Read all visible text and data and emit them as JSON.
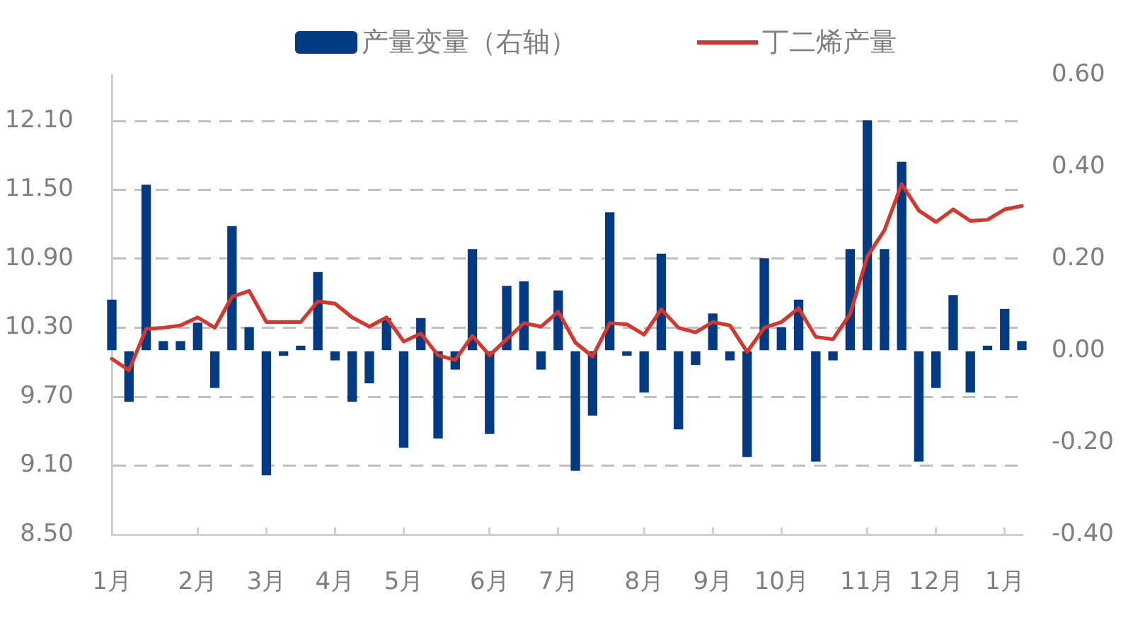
{
  "chart_data": {
    "type": "bar",
    "categories": [
      "1月",
      null,
      null,
      null,
      null,
      "2月",
      null,
      null,
      null,
      "3月",
      null,
      null,
      null,
      "4月",
      null,
      null,
      null,
      "5月",
      null,
      null,
      null,
      null,
      "6月",
      null,
      null,
      null,
      "7月",
      null,
      null,
      null,
      null,
      "8月",
      null,
      null,
      null,
      "9月",
      null,
      null,
      null,
      "10月",
      null,
      null,
      null,
      null,
      "11月",
      null,
      null,
      null,
      "12月",
      null,
      null,
      null,
      "1月",
      null
    ],
    "series": [
      {
        "name": "产量变量（右轴）",
        "axis": "y2",
        "color": "#023a84",
        "values": [
          0.11,
          -0.11,
          0.36,
          0.02,
          0.02,
          0.06,
          -0.08,
          0.27,
          0.05,
          -0.27,
          -0.01,
          0.01,
          0.17,
          -0.02,
          -0.11,
          -0.07,
          0.07,
          -0.21,
          0.07,
          -0.19,
          -0.04,
          0.22,
          -0.18,
          0.14,
          0.15,
          -0.04,
          0.13,
          -0.26,
          -0.14,
          0.3,
          -0.01,
          -0.09,
          0.21,
          -0.17,
          -0.03,
          0.08,
          -0.02,
          -0.23,
          0.2,
          0.05,
          0.11,
          -0.24,
          -0.02,
          0.22,
          0.5,
          0.22,
          0.41,
          -0.24,
          -0.08,
          0.12,
          -0.09,
          0.01,
          0.09,
          0.02
        ]
      },
      {
        "name": "丁二烯产量",
        "type": "line",
        "color": "#d6362b",
        "values": [
          10.03,
          9.93,
          10.29,
          10.3,
          10.32,
          10.39,
          10.3,
          10.57,
          10.62,
          10.35,
          10.35,
          10.35,
          10.53,
          10.51,
          10.39,
          10.31,
          10.39,
          10.18,
          10.25,
          10.06,
          10.02,
          10.23,
          10.06,
          10.2,
          10.34,
          10.31,
          10.44,
          10.17,
          10.05,
          10.34,
          10.33,
          10.24,
          10.46,
          10.3,
          10.26,
          10.35,
          10.32,
          10.09,
          10.3,
          10.35,
          10.47,
          10.22,
          10.2,
          10.42,
          10.92,
          11.15,
          11.55,
          11.32,
          11.22,
          11.33,
          11.23,
          11.24,
          11.33,
          11.36
        ]
      }
    ],
    "ylim": [
      8.5,
      12.5
    ],
    "yticks": [
      {
        "value": 8.5,
        "label": "8.50"
      },
      {
        "value": 9.1,
        "label": "9.10"
      },
      {
        "value": 9.7,
        "label": "9.70"
      },
      {
        "value": 10.3,
        "label": "10.30"
      },
      {
        "value": 10.9,
        "label": "10.90"
      },
      {
        "value": 11.5,
        "label": "11.50"
      },
      {
        "value": 12.1,
        "label": "12.10"
      }
    ],
    "y2lim": [
      -0.4,
      0.6
    ],
    "y2ticks": [
      {
        "value": -0.4,
        "label": "-0.40"
      },
      {
        "value": -0.2,
        "label": "-0.20"
      },
      {
        "value": 0,
        "label": "0.00"
      },
      {
        "value": 0.2,
        "label": "0.20"
      },
      {
        "value": 0.4,
        "label": "0.40"
      },
      {
        "value": 0.6,
        "label": "0.60"
      }
    ],
    "grid": "y",
    "legend": "top"
  }
}
